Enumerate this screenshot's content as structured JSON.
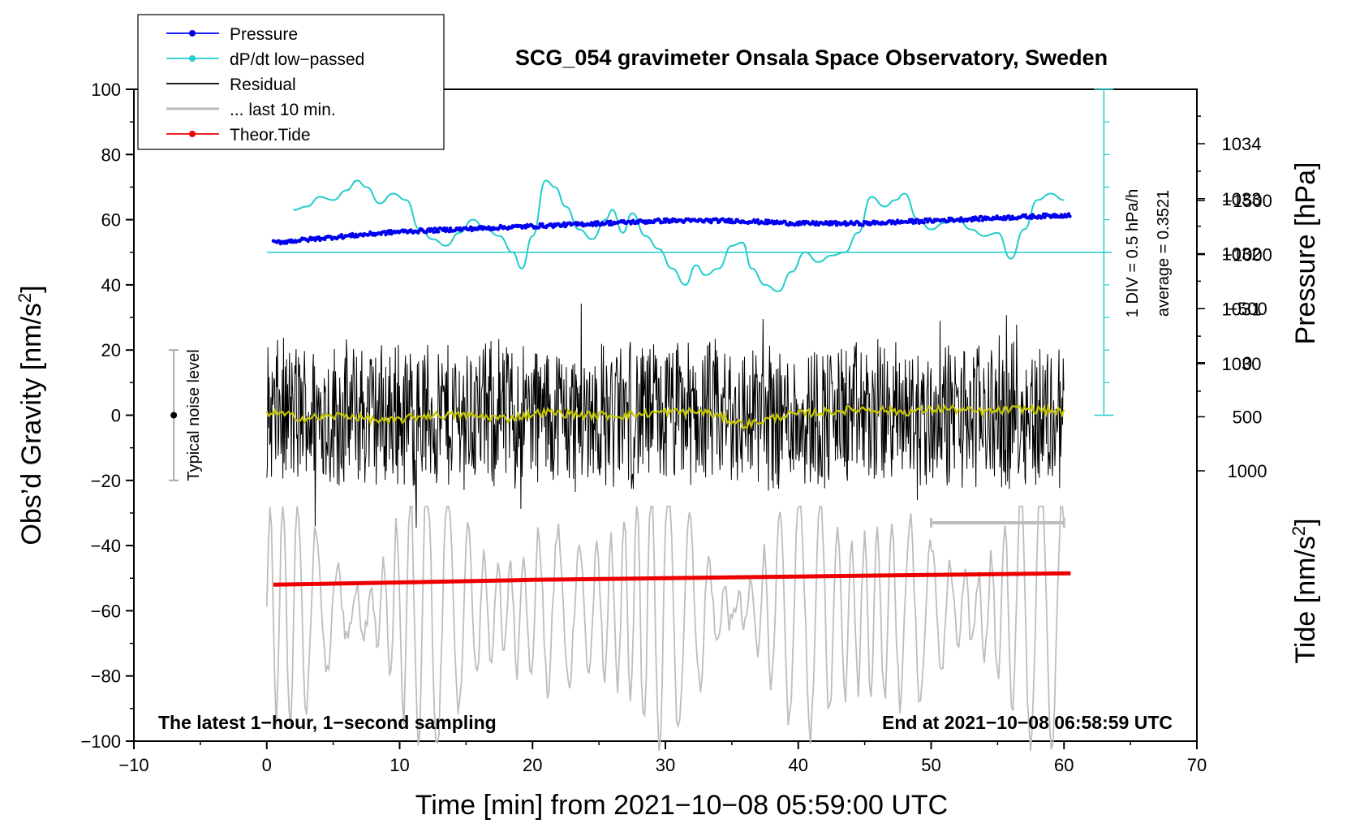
{
  "chart_data": {
    "type": "line",
    "title": "SCG_054 gravimeter Onsala Space Observatory, Sweden",
    "xlabel": "Time [min] from 2021−10−08 05:59:00 UTC",
    "ylabel_main": "Obs’d Gravity [nm/s",
    "ylabel_sup": "2",
    "ylabel_close": "]",
    "y2label_pressure": "Pressure [hPa]",
    "y2label_tide": "Tide [nm/s",
    "y2label_tide_sup": "2",
    "y2label_tide_close": "]",
    "xlim": [
      -10,
      70
    ],
    "ylim": [
      -100,
      100
    ],
    "x_ticks": [
      -10,
      0,
      10,
      20,
      30,
      40,
      50,
      60,
      70
    ],
    "x_tick_labels": [
      "−10",
      "0",
      "10",
      "20",
      "30",
      "40",
      "50",
      "60",
      "70"
    ],
    "y_ticks": [
      -100,
      -80,
      -60,
      -40,
      -20,
      0,
      20,
      40,
      60,
      80,
      100
    ],
    "y_tick_labels": [
      "−100",
      "−80",
      "−60",
      "−40",
      "−20",
      "0",
      "20",
      "40",
      "60",
      "80",
      "100"
    ],
    "pressure_axis": {
      "ticks": [
        1030,
        1031,
        1032,
        1033,
        1034
      ],
      "tick_labels": [
        "1030",
        "1031",
        "1032",
        "1033",
        "1034"
      ],
      "data_range": [
        1028,
        1035
      ]
    },
    "tide_axis": {
      "ticks": [
        -1500,
        -1000,
        -500,
        0,
        500,
        1000
      ],
      "tick_labels": [
        "−1500",
        "−1000",
        "−500",
        "0",
        "500",
        "1000"
      ],
      "data_range": [
        -1500,
        1000
      ]
    },
    "legend": {
      "position": "top-left",
      "entries": [
        {
          "label": "Pressure",
          "color": "#0000ee",
          "marker": true
        },
        {
          "label": "dP/dt low−passed",
          "color": "#22cccc",
          "marker": true
        },
        {
          "label": "Residual",
          "color": "#000000",
          "marker": false
        },
        {
          "label": "... last 10 min.",
          "color": "#bbbbbb",
          "marker": false
        },
        {
          "label": "Theor.Tide",
          "color": "#ee0000",
          "marker": true
        }
      ]
    },
    "annotations": {
      "bottom_left": "The latest 1−hour, 1−second sampling",
      "bottom_right": "End at 2021−10−08 06:58:59 UTC",
      "noise_label": "Typical noise level",
      "noise_range": [
        -20,
        20
      ],
      "dpdt_scale": "1 DIV = 0.5 hPa/h",
      "dpdt_average": "average = 0.3521"
    },
    "series": {
      "pressure_hPa": {
        "x": [
          0.5,
          5,
          10,
          15,
          20,
          25,
          30,
          35,
          40,
          45,
          50,
          55,
          60
        ],
        "y": [
          1032.2,
          1032.3,
          1032.4,
          1032.45,
          1032.5,
          1032.55,
          1032.6,
          1032.6,
          1032.55,
          1032.55,
          1032.6,
          1032.65,
          1032.7
        ]
      },
      "dpdt_lowpassed_gravity_units": {
        "x": [
          2,
          3,
          4,
          5,
          6,
          6.8,
          7.5,
          8.5,
          9.5,
          10.5,
          11.5,
          12.5,
          13.5,
          14.5,
          15.5,
          16.5,
          17.5,
          18.5,
          19.2,
          20,
          21,
          21.7,
          22.5,
          23.5,
          24.5,
          25.5,
          26,
          26.8,
          27.5,
          28.5,
          29.5,
          30.5,
          31.5,
          32.3,
          33,
          34,
          35,
          35.8,
          36.5,
          37.5,
          38.5,
          39.5,
          40.5,
          41.5,
          42.5,
          43.5,
          44.5,
          45.5,
          46.5,
          47.3,
          48,
          49,
          50,
          51,
          52,
          53,
          54,
          55,
          56,
          57,
          58,
          59,
          60
        ],
        "y": [
          63,
          64,
          67,
          66,
          69,
          72,
          70,
          65,
          68,
          66,
          57,
          54,
          52,
          56,
          60,
          57,
          55,
          50,
          45,
          55,
          72,
          70,
          64,
          57,
          54,
          60,
          63,
          56,
          62,
          55,
          51,
          45,
          40,
          46,
          43,
          45,
          52,
          53,
          45,
          40,
          38,
          44,
          50,
          47,
          49,
          50,
          56,
          67,
          64,
          66,
          68,
          60,
          57,
          59,
          60,
          57,
          55,
          56,
          48,
          57,
          66,
          68,
          66
        ]
      },
      "residual_smoothed": {
        "x": [
          0,
          3,
          6,
          9,
          12,
          15,
          18,
          21,
          24,
          27,
          30,
          33,
          36,
          39,
          42,
          45,
          48,
          51,
          54,
          57,
          60
        ],
        "y": [
          1,
          -1,
          0,
          -2,
          0,
          0,
          -1,
          1,
          0,
          0,
          1,
          1,
          -3,
          0,
          1,
          2,
          1,
          2,
          1,
          2,
          1
        ]
      },
      "residual_amplitude_nm_s2": 25,
      "last_10_min_bar": {
        "x_start": 50,
        "x_end": 60,
        "y": -33
      },
      "theoretical_tide": {
        "x": [
          0.5,
          10,
          20,
          30,
          40,
          50,
          60.5
        ],
        "y": [
          -52,
          -51.3,
          -50.5,
          -50,
          -49.5,
          -49,
          -48.5
        ]
      },
      "last10_amplitude_gravity_units": 45
    }
  }
}
